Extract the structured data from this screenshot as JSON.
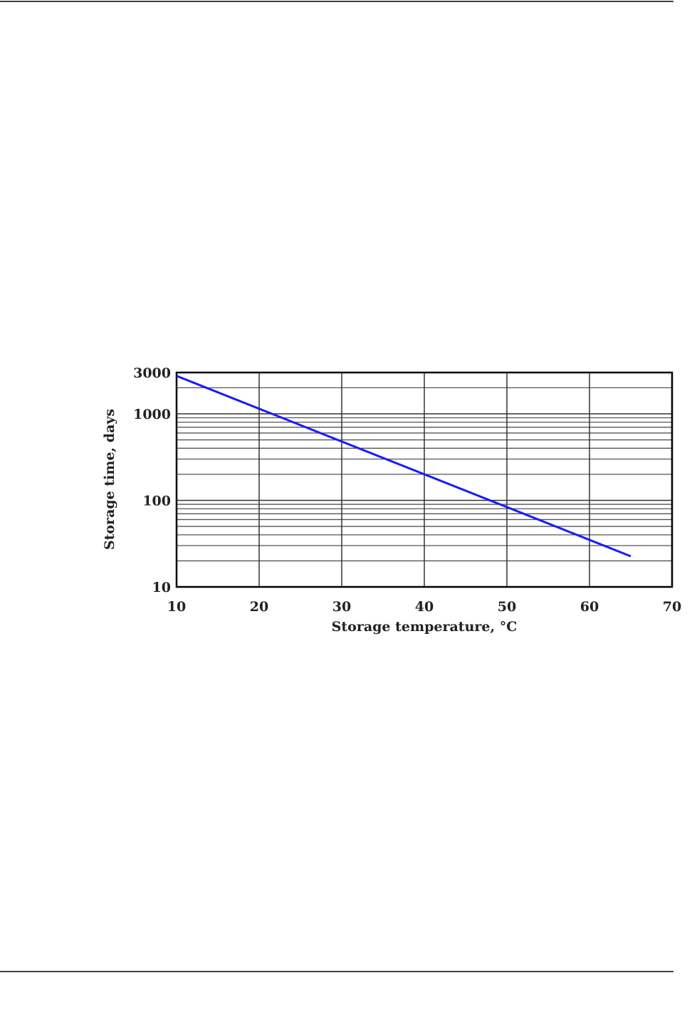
{
  "chart_data": {
    "type": "line",
    "x_label": "Storage temperature, °C",
    "y_label": "Storage time, days",
    "x": [
      10,
      65
    ],
    "values": [
      2740,
      22.6
    ],
    "color": "#1a1aff",
    "xlim": [
      10,
      70
    ],
    "xticks": [
      10,
      20,
      30,
      40,
      50,
      60,
      70
    ],
    "ylim": [
      10,
      3000
    ],
    "yticks": [
      10,
      100,
      1000,
      3000
    ],
    "y_log_scale": true,
    "grid": true,
    "minor_grid": true
  }
}
